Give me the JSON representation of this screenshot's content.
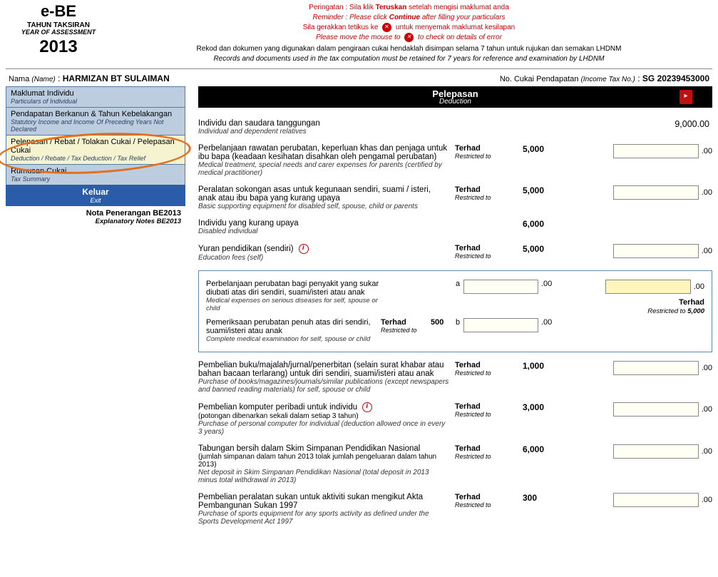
{
  "header": {
    "logo_title": "e-BE",
    "logo_sub": "TAHUN TAKSIRAN",
    "logo_sub_en": "YEAR OF ASSESSMENT",
    "logo_year": "2013",
    "warn1_a": "Peringatan : Sila klik ",
    "warn1_b": "Teruskan",
    "warn1_c": " setelah mengisi maklumat anda",
    "warn1_en_a": "Reminder : Please click ",
    "warn1_en_b": "Continue",
    "warn1_en_c": " after filling your particulars",
    "warn2_a": "Sila gerakkan tetikus ke ",
    "warn2_b": " untuk menyemak maklumat kesilapan",
    "warn2_en_a": "Please move the mouse to ",
    "warn2_en_b": " to check on details of error",
    "retain_my": "Rekod dan dokumen yang digunakan dalam pengiraan cukai hendaklah disimpan selama 7 tahun untuk rujukan dan semakan LHDNM",
    "retain_en": "Records and documents used in the tax computation must be retained for 7 years for reference and examination by LHDNM"
  },
  "identity": {
    "name_label": "Nama ",
    "name_label_en": "(Name)",
    "name_value": "HARMIZAN BT SULAIMAN",
    "tax_label": "No. Cukai Pendapatan ",
    "tax_label_en": "(Income Tax No.)",
    "tax_value": "SG 20239453000"
  },
  "sidebar": {
    "items": [
      {
        "my": "Maklumat Individu",
        "en": "Particulars of Individual"
      },
      {
        "my": "Pendapatan Berkanun & Tahun Kebelakangan",
        "en": "Statutory Income and Income Of Preceding Years Not Declared"
      },
      {
        "my": "Pelepasan / Rebat / Tolakan Cukai / Pelepasan Cukai",
        "en": "Deduction / Rebate / Tax Deduction / Tax Relief"
      },
      {
        "my": "Rumusan Cukai",
        "en": "Tax Summary"
      }
    ],
    "exit_my": "Keluar",
    "exit_en": "Exit",
    "notes_my": "Nota Penerangan BE2013",
    "notes_en": "Explanatory Notes BE2013"
  },
  "section": {
    "title_my": "Pelepasan",
    "title_en": "Deduction"
  },
  "limit_my": "Terhad",
  "limit_en": "Restricted to",
  "decimal": ".00",
  "rows": {
    "r1": {
      "my": "Individu dan saudara tanggungan",
      "en": "Individual and dependent relatives",
      "amount_static": "9,000.00"
    },
    "r2": {
      "my": "Perbelanjaan rawatan perubatan, keperluan khas dan penjaga untuk ibu bapa (keadaan kesihatan disahkan oleh pengamal perubatan)",
      "en": "Medical treatment, special needs and carer expenses for parents (certified by medical practitioner)",
      "limit": "5,000"
    },
    "r3": {
      "my": "Peralatan sokongan asas untuk kegunaan sendiri, suami / isteri, anak atau ibu bapa yang kurang upaya",
      "en": "Basic supporting equipment for disabled self, spouse, child or parents",
      "limit": "5,000"
    },
    "r4": {
      "my": "Individu yang kurang upaya",
      "en": "Disabled individual",
      "limit": "6,000"
    },
    "r5": {
      "my": "Yuran pendidikan (sendiri)",
      "en": "Education fees (self)",
      "limit": "5,000",
      "info": true
    },
    "box_a": {
      "my": "Perbelanjaan perubatan bagi penyakit yang sukar diubati atas diri sendiri, suami/isteri atau anak",
      "en": "Medical expenses on serious diseases for self, spouse or child",
      "tag": "a"
    },
    "box_b": {
      "my": "Pemeriksaan perubatan penuh atas diri sendiri, suami/isteri atau anak",
      "en": "Complete medical examination for self, spouse or child",
      "tag": "b",
      "limit": "500"
    },
    "box_total_limit": "5,000",
    "r6": {
      "my": "Pembelian buku/majalah/jurnal/penerbitan (selain surat khabar atau bahan bacaan terlarang) untuk diri sendiri, suami/isteri atau anak",
      "en": "Purchase of books/magazines/journals/similar publications (except newspapers and banned reading materials) for self, spouse or child",
      "limit": "1,000"
    },
    "r7": {
      "my": "Pembelian komputer peribadi untuk individu",
      "sub_my": "(potongan dibenarkan sekali dalam setiap 3 tahun)",
      "en": "Purchase of personal computer for individual (deduction allowed once in every 3 years)",
      "limit": "3,000",
      "info": true
    },
    "r8": {
      "my": "Tabungan bersih dalam Skim Simpanan Pendidikan Nasional",
      "sub_my": "(jumlah simpanan dalam tahun 2013 tolak jumlah pengeluaran dalam tahun 2013)",
      "en": "Net deposit in Skim Simpanan Pendidikan Nasional (total deposit in 2013 minus total withdrawal in 2013)",
      "limit": "6,000"
    },
    "r9": {
      "my": "Pembelian peralatan sukan untuk aktiviti sukan mengikut Akta Pembangunan Sukan 1997",
      "en": "Purchase of sports equipment for any sports activity as defined under the Sports Development Act 1997",
      "limit": "300"
    }
  }
}
